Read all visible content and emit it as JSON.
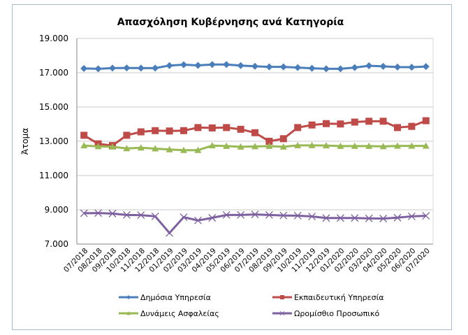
{
  "chart_data": {
    "type": "line",
    "title": "Απασχόληση Κυβέρνησης ανά Κατηγορία",
    "xlabel": "",
    "ylabel": "Άτομα",
    "ylim": [
      7000,
      19000
    ],
    "yticks": [
      7000,
      9000,
      11000,
      13000,
      15000,
      17000,
      19000
    ],
    "ytick_labels": [
      "7.000",
      "9.000",
      "11.000",
      "13.000",
      "15.000",
      "17.000",
      "19.000"
    ],
    "grid": true,
    "legend_position": "bottom",
    "categories": [
      "07/2018",
      "08/2018",
      "09/2018",
      "10/2018",
      "11/2018",
      "12/2018",
      "01/2019",
      "02/2019",
      "03/2019",
      "04/2019",
      "05/2019",
      "06/2019",
      "07/2019",
      "08/2019",
      "09/2019",
      "10/2019",
      "11/2019",
      "12/2019",
      "01/2020",
      "02/2020",
      "03/2020",
      "04/2020",
      "05/2020",
      "06/2020",
      "07/2020"
    ],
    "series": [
      {
        "name": "Δημόσια Υπηρεσία",
        "color": "#4a7ebb",
        "marker": "diamond",
        "values": [
          17250,
          17230,
          17270,
          17280,
          17270,
          17270,
          17420,
          17470,
          17430,
          17480,
          17480,
          17420,
          17380,
          17340,
          17340,
          17300,
          17260,
          17230,
          17230,
          17300,
          17410,
          17370,
          17330,
          17320,
          17360
        ]
      },
      {
        "name": "Εκπαιδευτική Υπηρεσία",
        "color": "#be4b48",
        "marker": "square",
        "values": [
          13350,
          12850,
          12750,
          13350,
          13550,
          13620,
          13600,
          13620,
          13800,
          13780,
          13800,
          13700,
          13500,
          13000,
          13150,
          13800,
          13950,
          14030,
          14010,
          14120,
          14170,
          14170,
          13800,
          13870,
          14200
        ]
      },
      {
        "name": "Δυνάμεις Ασφαλείας",
        "color": "#98b954",
        "marker": "triangle",
        "values": [
          12750,
          12700,
          12680,
          12580,
          12620,
          12570,
          12520,
          12480,
          12480,
          12750,
          12720,
          12680,
          12700,
          12720,
          12680,
          12760,
          12760,
          12750,
          12720,
          12720,
          12720,
          12700,
          12730,
          12730,
          12730
        ]
      },
      {
        "name": "Ωρομίσθιο Προσωπικό",
        "color": "#7d60a0",
        "marker": "x",
        "values": [
          8800,
          8810,
          8780,
          8700,
          8690,
          8620,
          7650,
          8570,
          8380,
          8530,
          8700,
          8700,
          8730,
          8700,
          8670,
          8660,
          8610,
          8520,
          8520,
          8520,
          8500,
          8490,
          8540,
          8620,
          8650
        ]
      }
    ]
  }
}
